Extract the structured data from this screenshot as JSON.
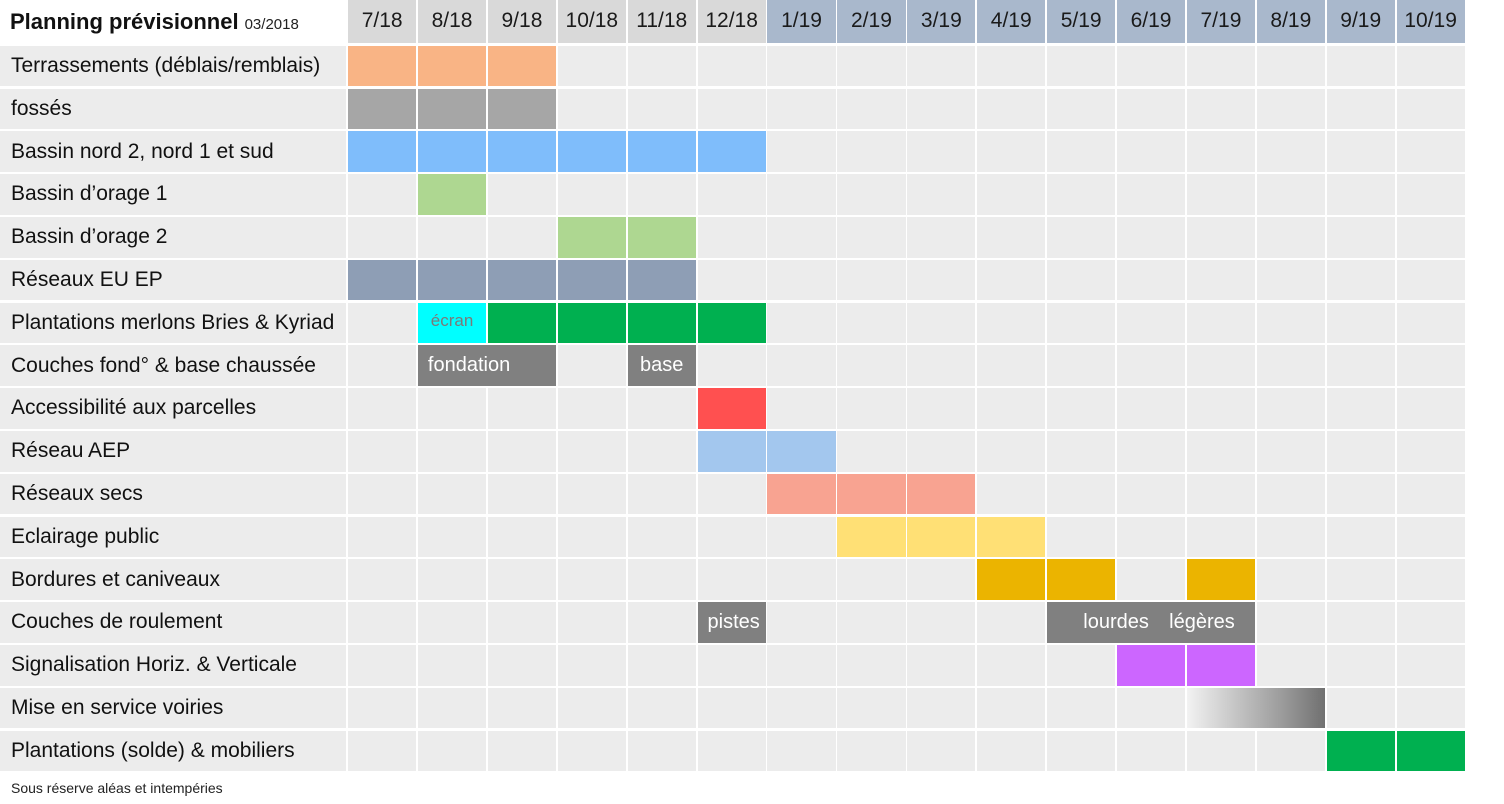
{
  "title": "Planning prévisionnel",
  "title_date": "03/2018",
  "footnote": "Sous réserve aléas et intempéries",
  "chart_data": {
    "type": "gantt",
    "months": [
      "7/18",
      "8/18",
      "9/18",
      "10/18",
      "11/18",
      "12/18",
      "1/19",
      "2/19",
      "3/19",
      "4/19",
      "5/19",
      "6/19",
      "7/19",
      "8/19",
      "9/19",
      "10/19"
    ],
    "month_header_colors": {
      "2018": "#d9d9d9",
      "2019": "#a9b8cc"
    },
    "tasks": [
      {
        "label": "Terrassements (déblais/remblais)",
        "bars": [
          {
            "start": 0,
            "end": 2,
            "color": "#f9b485"
          }
        ]
      },
      {
        "label": "fossés",
        "bars": [
          {
            "start": 0,
            "end": 2,
            "color": "#a6a6a6"
          }
        ]
      },
      {
        "label": "Bassin nord 2, nord 1 et sud",
        "bars": [
          {
            "start": 0,
            "end": 5,
            "color": "#7fbdfb"
          }
        ]
      },
      {
        "label": "Bassin d’orage 1",
        "bars": [
          {
            "start": 1,
            "end": 1,
            "color": "#aed791"
          }
        ]
      },
      {
        "label": "Bassin d’orage 2",
        "bars": [
          {
            "start": 3,
            "end": 4,
            "color": "#aed791"
          }
        ]
      },
      {
        "label": "Réseaux EU EP",
        "bars": [
          {
            "start": 0,
            "end": 4,
            "color": "#8e9eb5"
          }
        ]
      },
      {
        "label": "Plantations merlons Bries & Kyriad",
        "bars": [
          {
            "start": 1,
            "end": 1,
            "color": "#00ffff",
            "text": "écran"
          },
          {
            "start": 2,
            "end": 5,
            "color": "#00b050"
          }
        ]
      },
      {
        "label": "Couches fond° & base chaussée",
        "bars": [
          {
            "start": 1,
            "end": 2,
            "color": "#808080",
            "text": "fondation"
          },
          {
            "start": 4,
            "end": 4,
            "color": "#808080",
            "text": "base"
          }
        ]
      },
      {
        "label": "Accessibilité aux parcelles",
        "bars": [
          {
            "start": 5,
            "end": 5,
            "color": "#ff5050"
          }
        ]
      },
      {
        "label": "Réseau AEP",
        "bars": [
          {
            "start": 5,
            "end": 6,
            "color": "#a3c7ee"
          }
        ]
      },
      {
        "label": "Réseaux secs",
        "bars": [
          {
            "start": 6,
            "end": 8,
            "color": "#f8a391"
          }
        ]
      },
      {
        "label": "Eclairage public",
        "bars": [
          {
            "start": 7,
            "end": 9,
            "color": "#ffe075"
          }
        ]
      },
      {
        "label": "Bordures et caniveaux",
        "bars": [
          {
            "start": 9,
            "end": 10,
            "color": "#ebb400"
          },
          {
            "start": 12,
            "end": 12,
            "color": "#ebb400"
          }
        ]
      },
      {
        "label": "Couches de roulement",
        "bars": [
          {
            "start": 5,
            "end": 5,
            "color": "#808080",
            "text": "pistes"
          },
          {
            "start": 10,
            "end": 12,
            "color": "#808080",
            "text": "lourdes",
            "text2": "légères"
          }
        ]
      },
      {
        "label": "Signalisation Horiz. & Verticale",
        "bars": [
          {
            "start": 11,
            "end": 12,
            "color": "#cc66ff"
          }
        ]
      },
      {
        "label": "Mise en service voiries",
        "bars": [
          {
            "start": 12,
            "end": 13,
            "color": "gradient"
          }
        ]
      },
      {
        "label": "Plantations (solde) & mobiliers",
        "bars": [
          {
            "start": 14,
            "end": 15,
            "color": "#00b050"
          }
        ]
      }
    ]
  }
}
